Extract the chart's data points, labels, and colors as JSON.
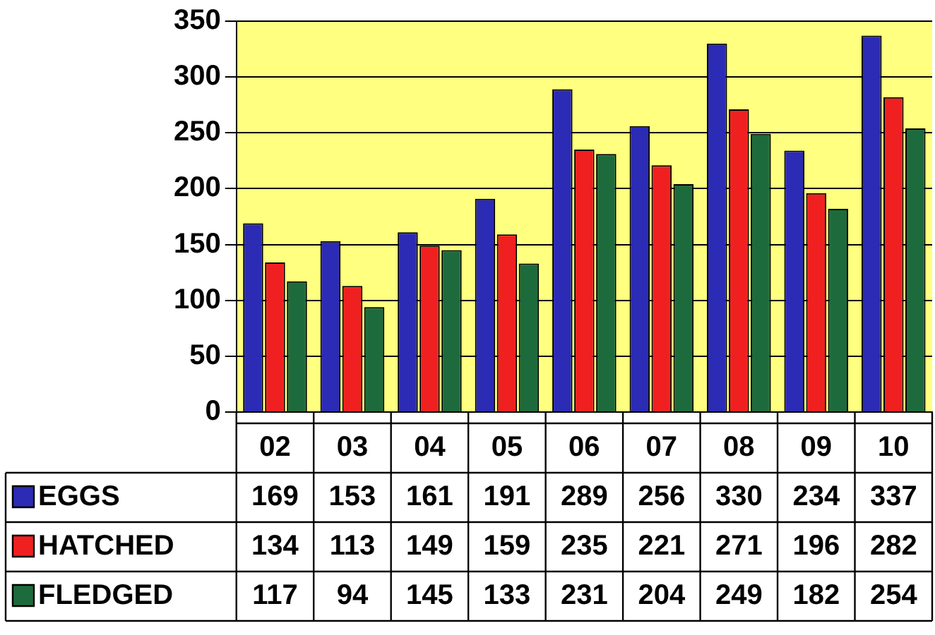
{
  "chart_data": {
    "type": "bar",
    "categories": [
      "02",
      "03",
      "04",
      "05",
      "06",
      "07",
      "08",
      "09",
      "10"
    ],
    "series": [
      {
        "name": "EGGS",
        "color": "#2b2bb5",
        "values": [
          169,
          153,
          161,
          191,
          289,
          256,
          330,
          234,
          337
        ]
      },
      {
        "name": "HATCHED",
        "color": "#f02020",
        "values": [
          134,
          113,
          149,
          159,
          235,
          221,
          271,
          196,
          282
        ]
      },
      {
        "name": "FLEDGED",
        "color": "#1d6b3c",
        "values": [
          117,
          94,
          145,
          133,
          231,
          204,
          249,
          182,
          254
        ]
      }
    ],
    "ylim": [
      0,
      350
    ],
    "yticks": [
      0,
      50,
      100,
      150,
      200,
      250,
      300,
      350
    ],
    "grid": "y",
    "legend": "bottom",
    "data_labels": true
  }
}
